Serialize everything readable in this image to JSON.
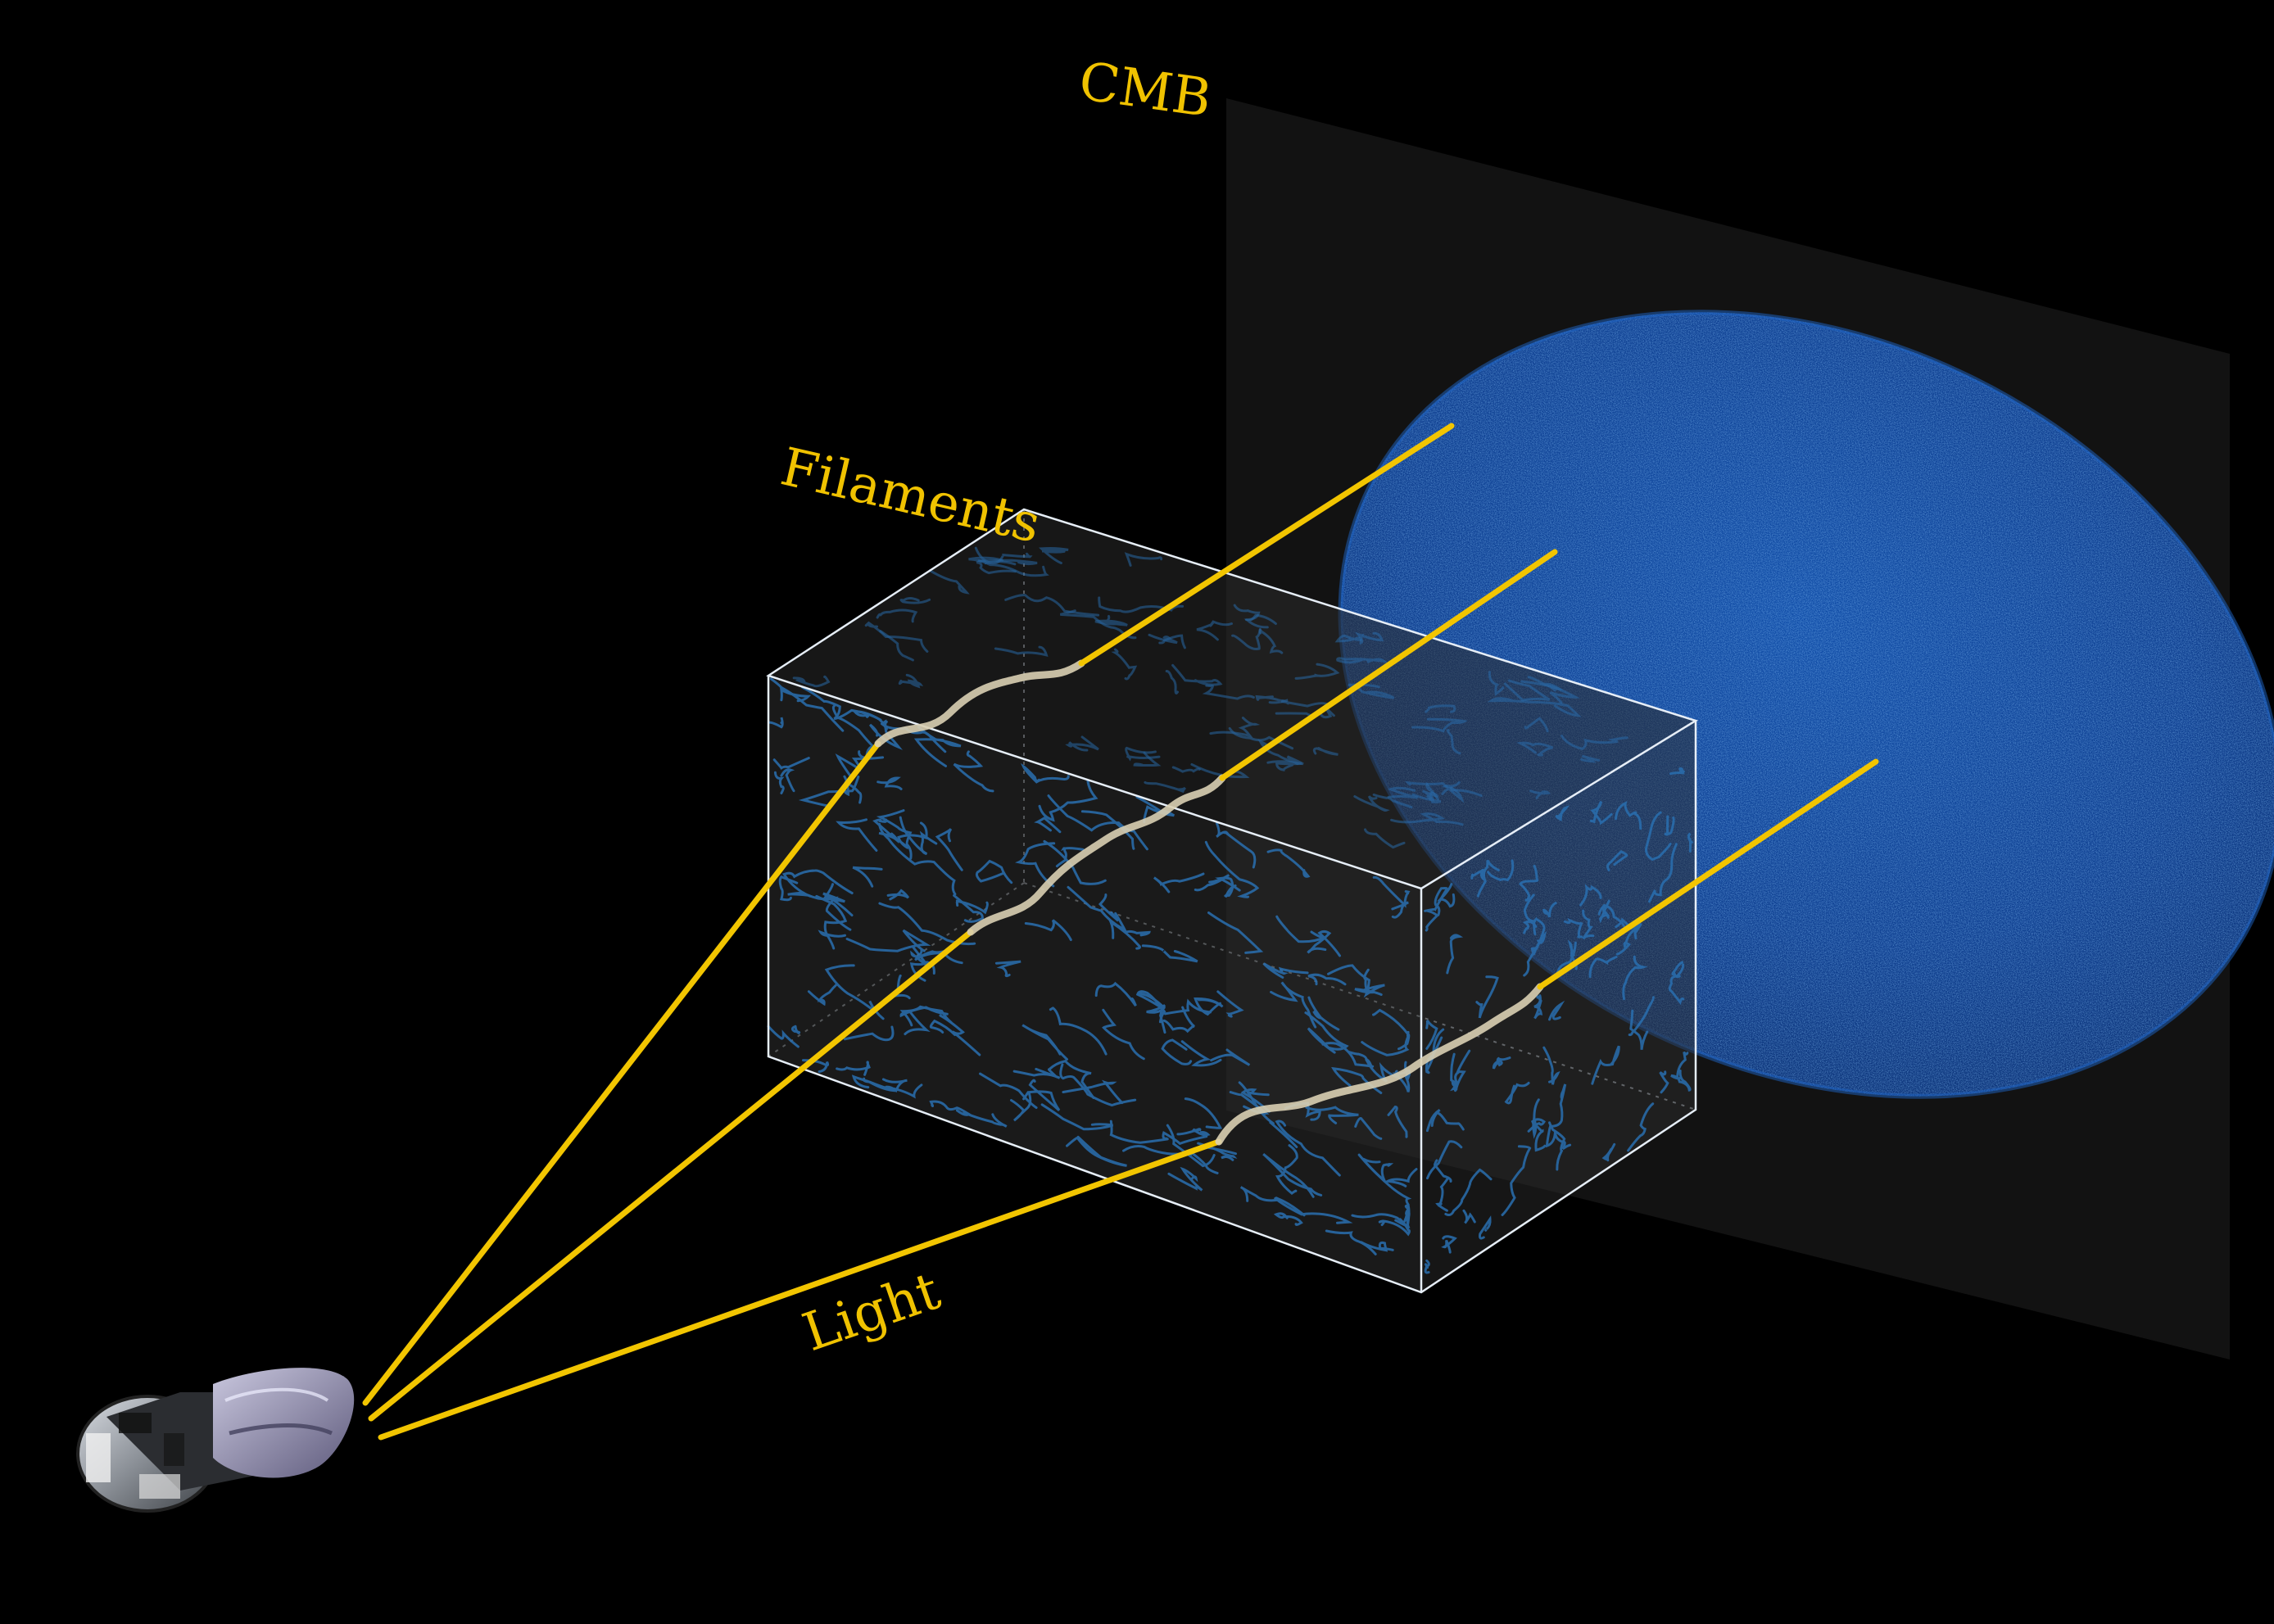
{
  "labels": {
    "cmb": "CMB",
    "filaments": "Filaments",
    "light": "Light"
  },
  "colors": {
    "background": "#000000",
    "label": "#f0c200",
    "light_ray": "#f2c500",
    "screen": "#121212",
    "cmb_map": "#0a3d8f",
    "box_edge": "#e6eef7",
    "filament": "#2a6fb0"
  },
  "icons": {
    "observer": "satellite-icon"
  }
}
